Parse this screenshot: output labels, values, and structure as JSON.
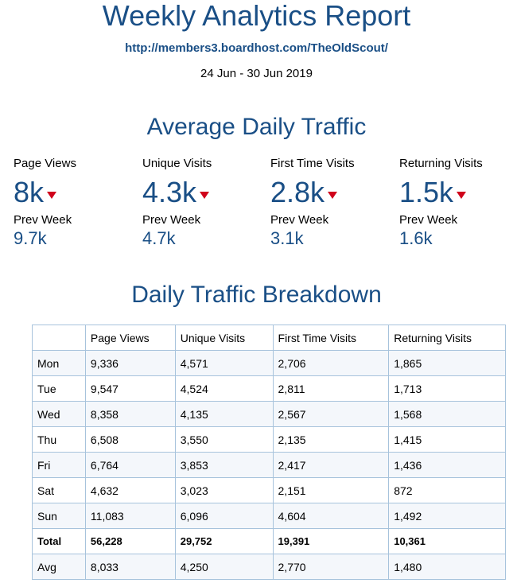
{
  "header": {
    "title": "Weekly Analytics Report",
    "url": "http://members3.boardhost.com/TheOldScout/",
    "date_range": "24 Jun - 30 Jun 2019"
  },
  "avg_section": {
    "title": "Average Daily Traffic",
    "metrics": [
      {
        "label": "Page Views",
        "value": "8k",
        "trend": "down",
        "prev_label": "Prev Week",
        "prev_value": "9.7k"
      },
      {
        "label": "Unique Visits",
        "value": "4.3k",
        "trend": "down",
        "prev_label": "Prev Week",
        "prev_value": "4.7k"
      },
      {
        "label": "First Time Visits",
        "value": "2.8k",
        "trend": "down",
        "prev_label": "Prev Week",
        "prev_value": "3.1k"
      },
      {
        "label": "Returning Visits",
        "value": "1.5k",
        "trend": "down",
        "prev_label": "Prev Week",
        "prev_value": "1.6k"
      }
    ]
  },
  "breakdown_section": {
    "title": "Daily Traffic Breakdown",
    "columns": [
      "",
      "Page Views",
      "Unique Visits",
      "First Time Visits",
      "Returning Visits"
    ],
    "rows": [
      [
        "Mon",
        "9,336",
        "4,571",
        "2,706",
        "1,865"
      ],
      [
        "Tue",
        "9,547",
        "4,524",
        "2,811",
        "1,713"
      ],
      [
        "Wed",
        "8,358",
        "4,135",
        "2,567",
        "1,568"
      ],
      [
        "Thu",
        "6,508",
        "3,550",
        "2,135",
        "1,415"
      ],
      [
        "Fri",
        "6,764",
        "3,853",
        "2,417",
        "1,436"
      ],
      [
        "Sat",
        "4,632",
        "3,023",
        "2,151",
        "872"
      ],
      [
        "Sun",
        "11,083",
        "6,096",
        "4,604",
        "1,492"
      ]
    ],
    "total": [
      "Total",
      "56,228",
      "29,752",
      "19,391",
      "10,361"
    ],
    "avg": [
      "Avg",
      "8,033",
      "4,250",
      "2,770",
      "1,480"
    ]
  },
  "colors": {
    "accent": "#1a4f86",
    "down_arrow": "#d0021b",
    "table_border": "#a7c3dc",
    "row_stripe": "#f4f7fb"
  }
}
